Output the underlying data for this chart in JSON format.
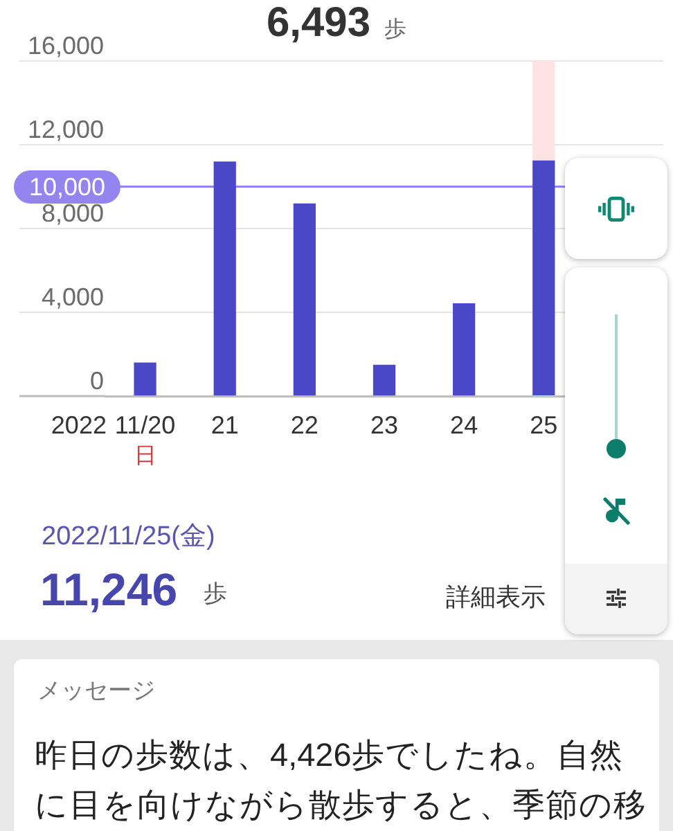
{
  "chart_data": {
    "type": "bar",
    "title": "6,493",
    "subtitle": "歩",
    "categories": [
      "11/20",
      "21",
      "22",
      "23",
      "24",
      "25",
      null
    ],
    "values": [
      1600,
      11200,
      9200,
      1500,
      4426,
      11246,
      null
    ],
    "color": "#4a48c6",
    "ylim": [
      0,
      16000
    ],
    "yticks": [
      0,
      {
        "value": 4000,
        "label": "4,000"
      },
      {
        "value": 8000,
        "label": "8,000"
      },
      {
        "value": 12000,
        "label": "12,000"
      },
      {
        "value": 16000,
        "label": "16,000"
      }
    ],
    "grid": "y",
    "legend": false,
    "ref_lines": [
      {
        "axis": "y",
        "value": 10000,
        "label": "10,000",
        "color": "#9484f0"
      }
    ],
    "bands": [
      {
        "axis": "x",
        "from": "25",
        "to": "25",
        "color": "#fde3e3"
      }
    ],
    "annotations": [
      "2022",
      "日",
      "2022/11/25(金)",
      "11,246",
      "歩",
      "詳細表示",
      "メッセージ",
      "昨日の歩数は、4,426歩でしたね。自然に目を向けながら散歩すると、季節の移"
    ]
  }
}
